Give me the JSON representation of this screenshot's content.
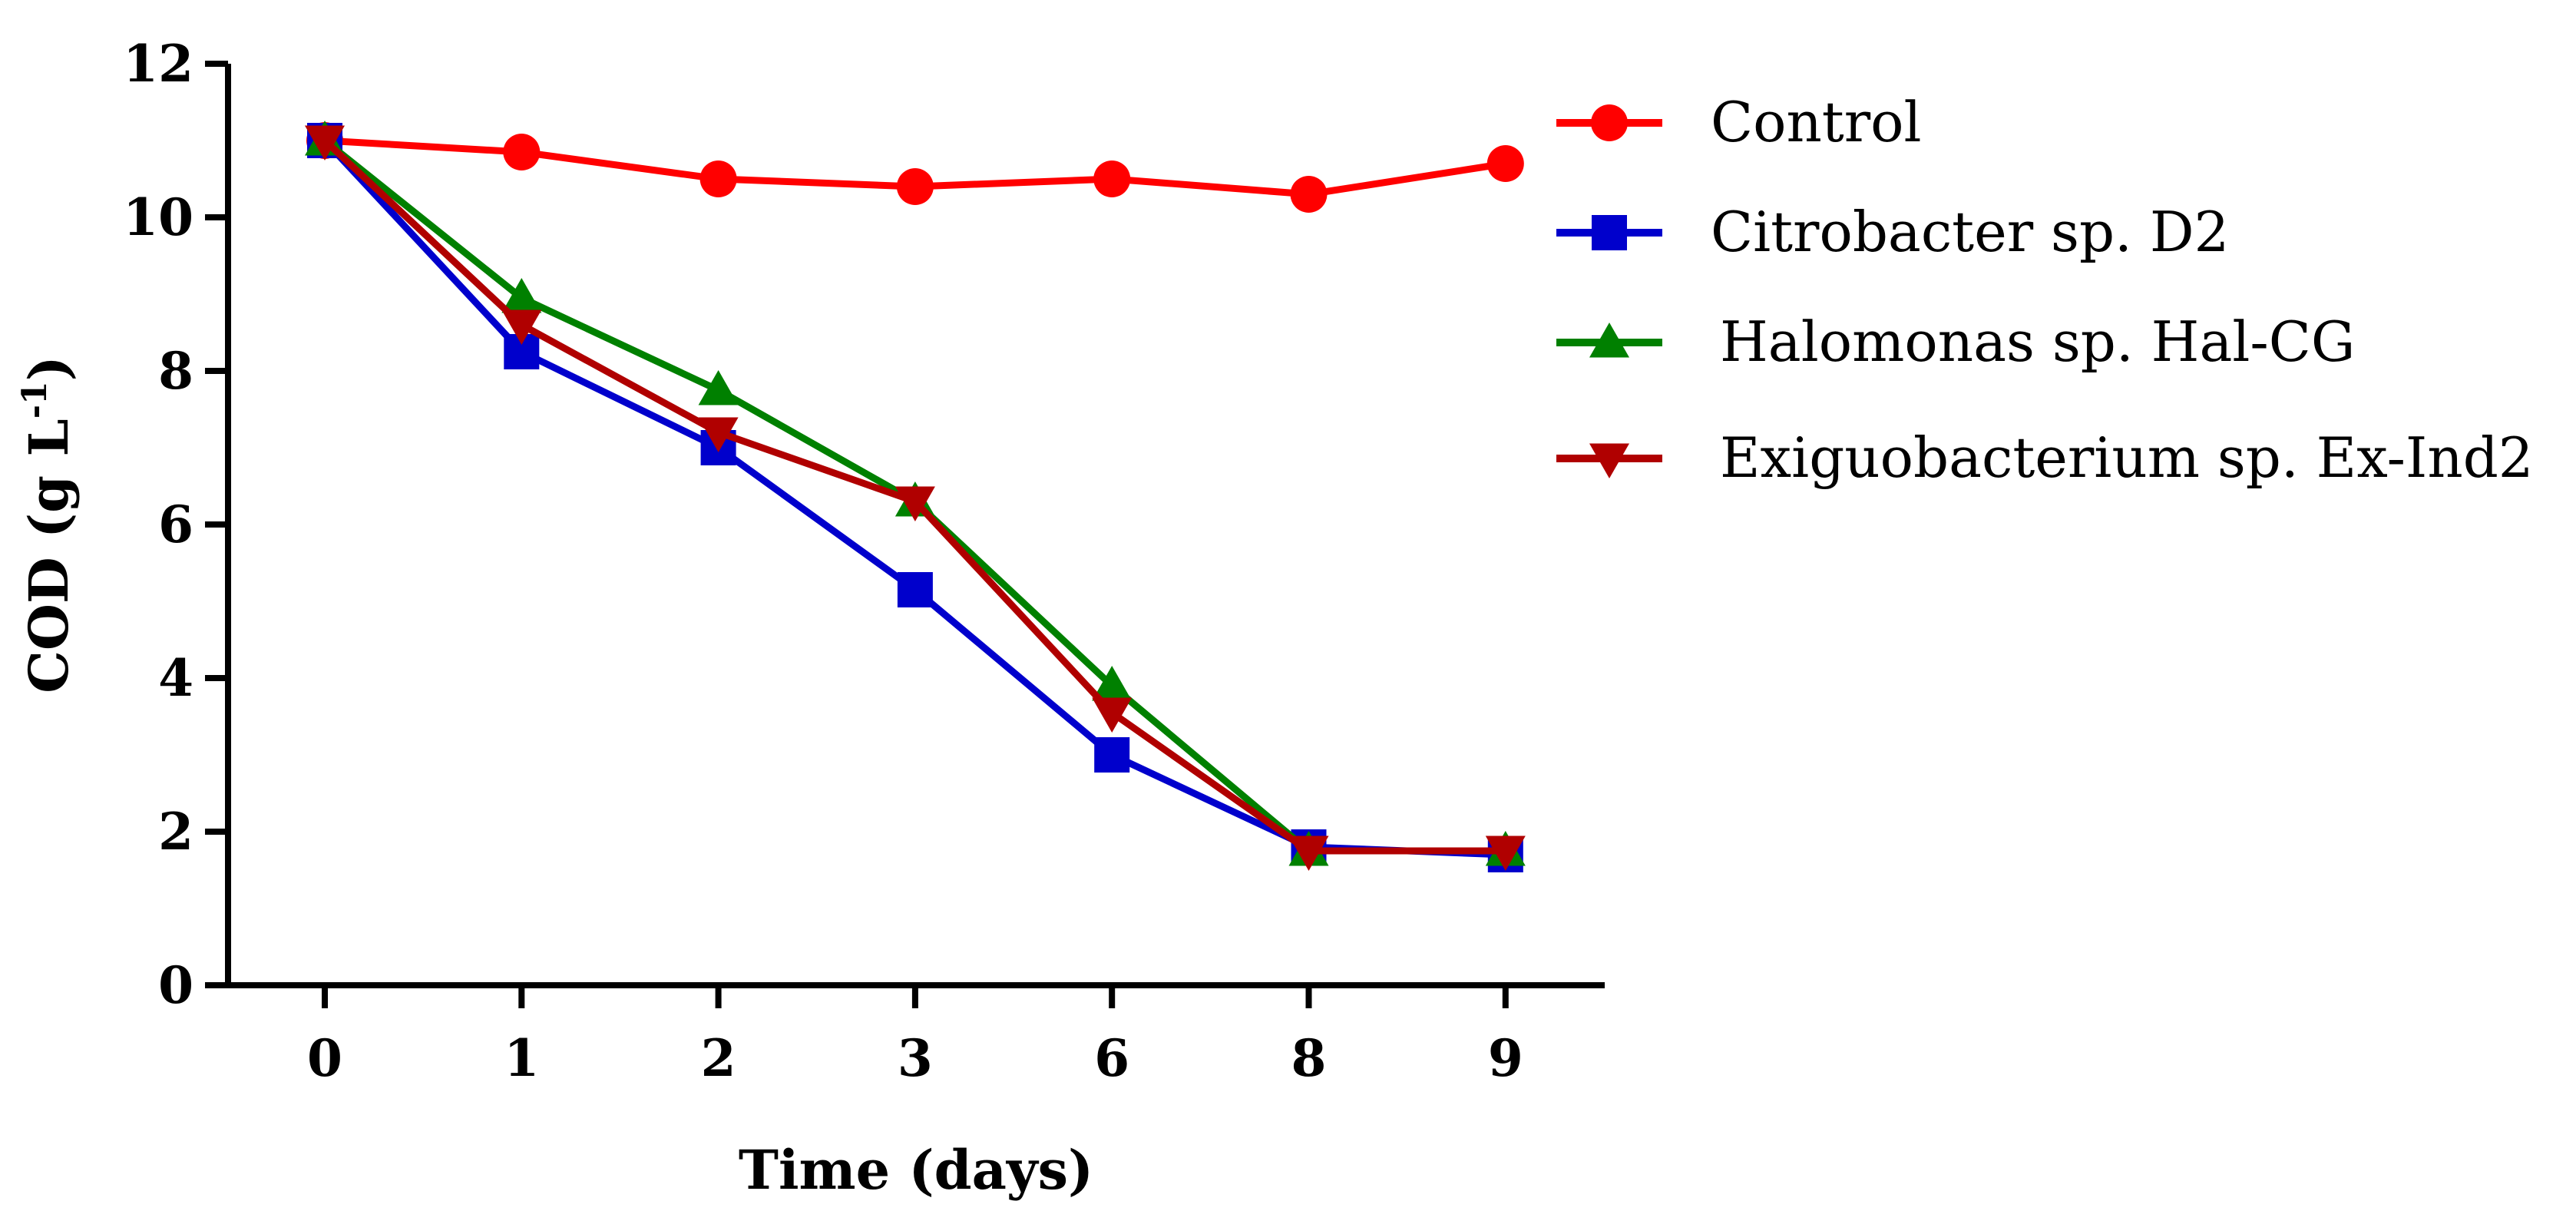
{
  "chart_data": {
    "type": "line",
    "title": "",
    "xlabel": "Time (days)",
    "ylabel_main": "COD (g L",
    "ylabel_sup": "-1",
    "ylabel_close": ")",
    "categories": [
      "0",
      "1",
      "2",
      "3",
      "6",
      "8",
      "9"
    ],
    "ylim": [
      0,
      12
    ],
    "yticks": [
      "0",
      "2",
      "4",
      "6",
      "8",
      "10",
      "12"
    ],
    "legend_position": "right",
    "series": [
      {
        "name": "Control",
        "color": "#ff0000",
        "marker": "circle",
        "values": [
          11.0,
          10.85,
          10.5,
          10.4,
          10.5,
          10.3,
          10.7
        ]
      },
      {
        "name": "Citrobacter sp. D2",
        "color": "#0000cc",
        "marker": "square",
        "values": [
          11.0,
          8.25,
          7.0,
          5.15,
          3.0,
          1.8,
          1.7
        ]
      },
      {
        "name": "Halomonas sp. Hal-CG",
        "color": "#008000",
        "marker": "triangle-up",
        "values": [
          11.0,
          8.95,
          7.75,
          6.3,
          3.9,
          1.75,
          1.75
        ]
      },
      {
        "name": "Exiguobacterium sp. Ex-Ind2",
        "color": "#b00000",
        "marker": "triangle-down",
        "values": [
          11.0,
          8.6,
          7.2,
          6.3,
          3.55,
          1.75,
          1.75
        ]
      }
    ]
  }
}
